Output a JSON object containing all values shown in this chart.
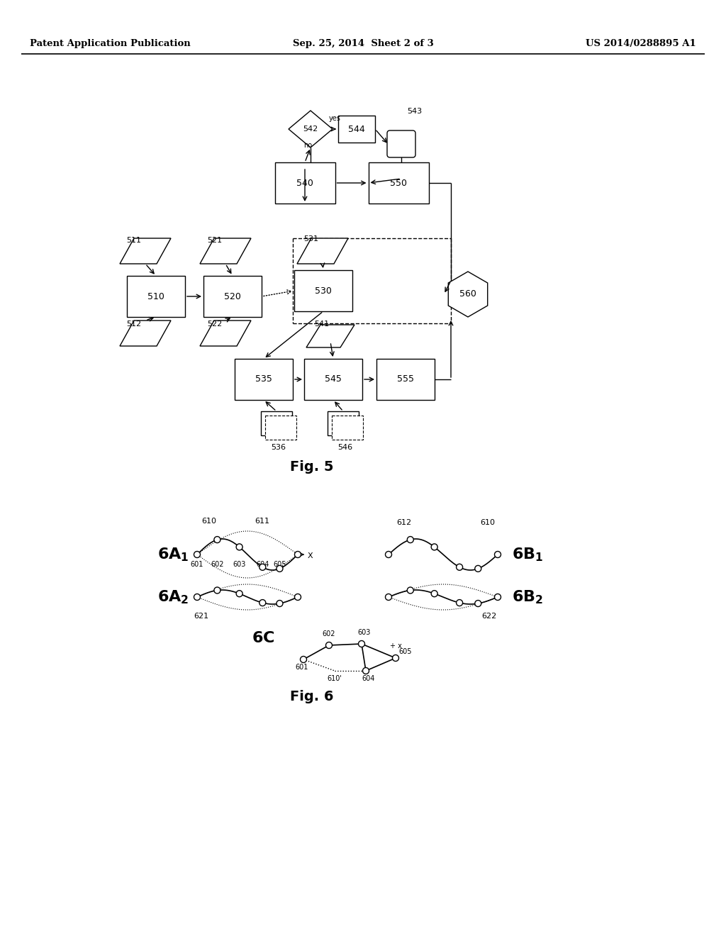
{
  "header_left": "Patent Application Publication",
  "header_center": "Sep. 25, 2014  Sheet 2 of 3",
  "header_right": "US 2014/0288895 A1",
  "fig5_label": "Fig. 5",
  "fig6_label": "Fig. 6",
  "bg_color": "#ffffff",
  "line_color": "#000000"
}
